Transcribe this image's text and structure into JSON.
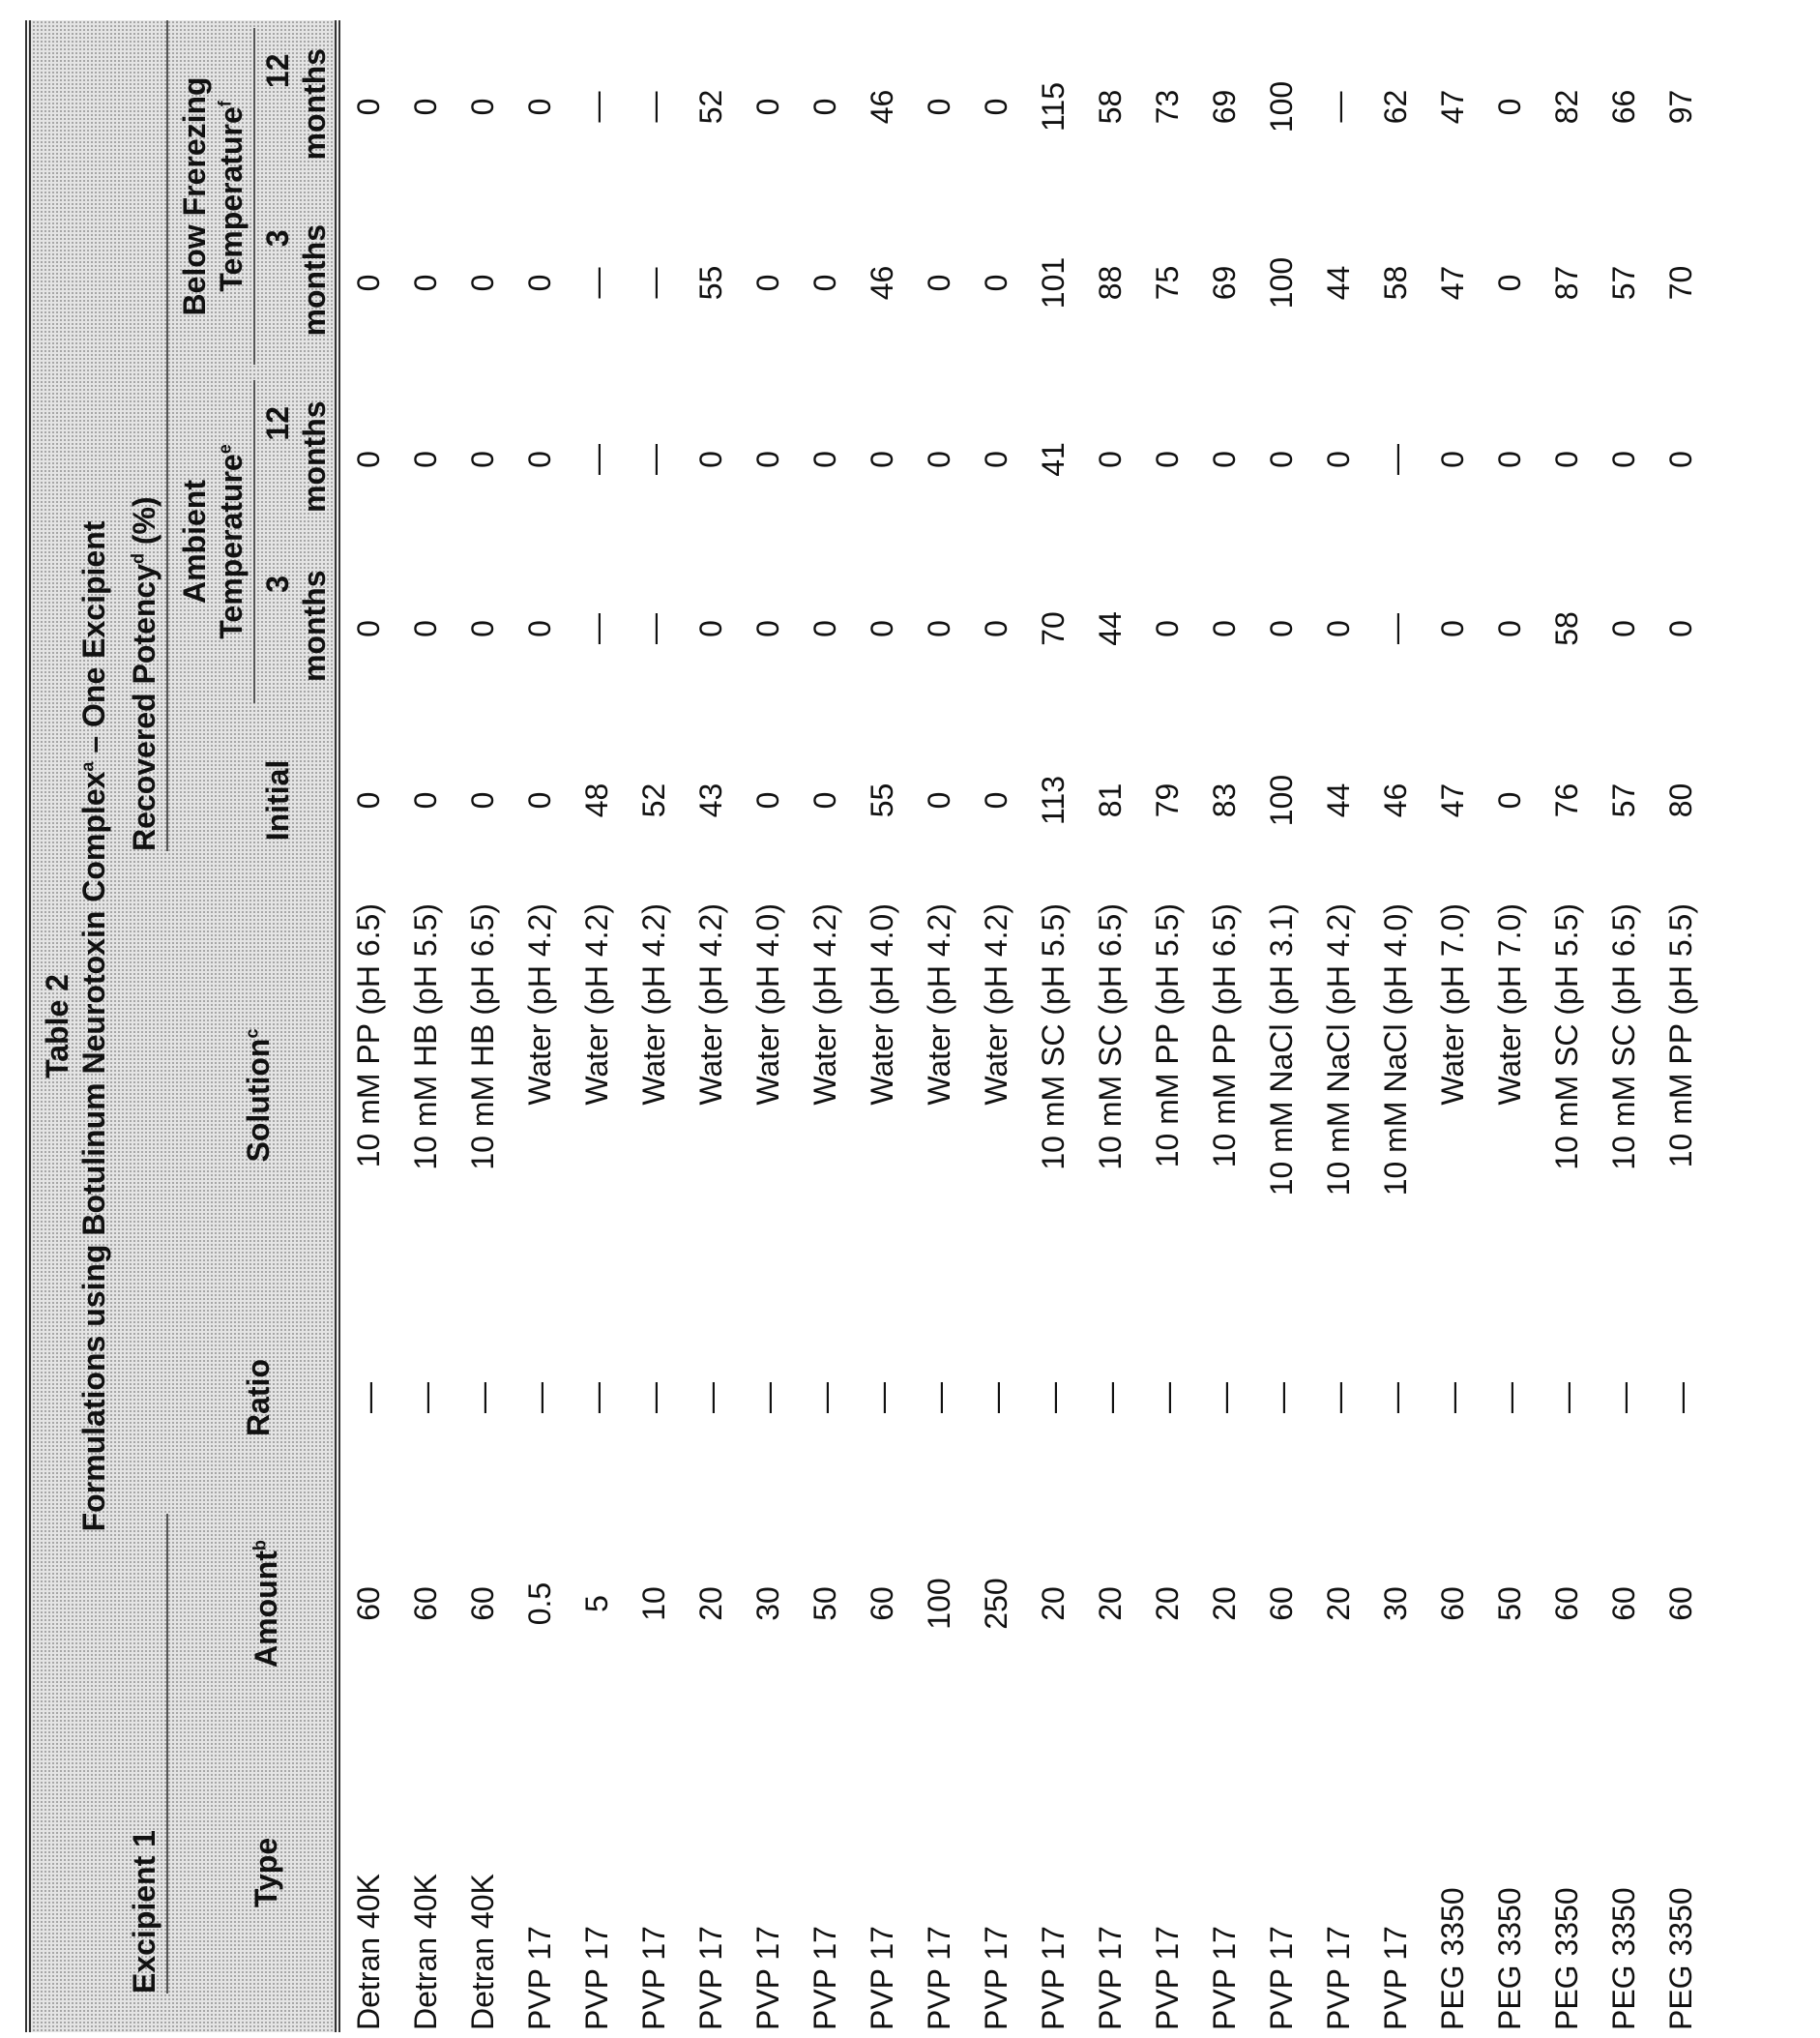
{
  "table": {
    "label": "Table 2",
    "title": {
      "text": "Formulations using Botulinum Neurotoxin Complex",
      "sup": "a",
      "rest": "– One Excipient"
    },
    "headers": {
      "excipient_group": "Excipient 1",
      "type": "Type",
      "amount": {
        "text": "Amount",
        "sup": "b"
      },
      "ratio": "Ratio",
      "solution": {
        "text": "Solution",
        "sup": "c"
      },
      "potency": {
        "text": "Recovered Potency",
        "sup": "d",
        "rest": "(%)"
      },
      "initial": "Initial",
      "ambient": {
        "text": "Ambient Temperature",
        "sup": "e"
      },
      "below": {
        "text": "Below Frerezing Temperature",
        "sup": "f"
      },
      "periods": [
        "3 months",
        "12 months",
        "3 months",
        "12 months"
      ]
    },
    "rows": [
      [
        "Detran 40K",
        60,
        "—",
        "10 mM PP (pH 6.5)",
        0,
        0,
        0,
        0,
        0
      ],
      [
        "Detran 40K",
        60,
        "—",
        "10 mM HB (pH 5.5)",
        0,
        0,
        0,
        0,
        0
      ],
      [
        "Detran 40K",
        60,
        "—",
        "10 mM HB (pH 6.5)",
        0,
        0,
        0,
        0,
        0
      ],
      [
        "PVP 17",
        0.5,
        "—",
        "Water (pH 4.2)",
        0,
        0,
        0,
        0,
        0
      ],
      [
        "PVP 17",
        5,
        "—",
        "Water (pH 4.2)",
        48,
        "—",
        "—",
        "—",
        "—"
      ],
      [
        "PVP 17",
        10,
        "—",
        "Water (pH 4.2)",
        52,
        "—",
        "—",
        "—",
        "—"
      ],
      [
        "PVP 17",
        20,
        "—",
        "Water (pH 4.2)",
        43,
        0,
        0,
        55,
        52
      ],
      [
        "PVP 17",
        30,
        "—",
        "Water (pH 4.0)",
        0,
        0,
        0,
        0,
        0
      ],
      [
        "PVP 17",
        50,
        "—",
        "Water (pH 4.2)",
        0,
        0,
        0,
        0,
        0
      ],
      [
        "PVP 17",
        60,
        "—",
        "Water (pH 4.0)",
        55,
        0,
        0,
        46,
        46
      ],
      [
        "PVP 17",
        100,
        "—",
        "Water (pH 4.2)",
        0,
        0,
        0,
        0,
        0
      ],
      [
        "PVP 17",
        250,
        "—",
        "Water (pH 4.2)",
        0,
        0,
        0,
        0,
        0
      ],
      [
        "PVP 17",
        20,
        "—",
        "10 mM SC (pH 5.5)",
        113,
        70,
        41,
        101,
        115
      ],
      [
        "PVP 17",
        20,
        "—",
        "10 mM SC (pH 6.5)",
        81,
        44,
        0,
        88,
        58
      ],
      [
        "PVP 17",
        20,
        "—",
        "10 mM PP (pH 5.5)",
        79,
        0,
        0,
        75,
        73
      ],
      [
        "PVP 17",
        20,
        "—",
        "10 mM PP (pH 6.5)",
        83,
        0,
        0,
        69,
        69
      ],
      [
        "PVP 17",
        60,
        "—",
        "10 mM NaCl (pH 3.1)",
        100,
        0,
        0,
        100,
        100
      ],
      [
        "PVP 17",
        20,
        "—",
        "10 mM NaCl (pH 4.2)",
        44,
        0,
        0,
        44,
        "—"
      ],
      [
        "PVP 17",
        30,
        "—",
        "10 mM NaCl (pH 4.0)",
        46,
        "—",
        "—",
        58,
        62
      ],
      [
        "PEG 3350",
        60,
        "—",
        "Water (pH 7.0)",
        47,
        0,
        0,
        47,
        47
      ],
      [
        "PEG 3350",
        50,
        "—",
        "Water (pH 7.0)",
        0,
        0,
        0,
        0,
        0
      ],
      [
        "PEG 3350",
        60,
        "—",
        "10 mM SC (pH 5.5)",
        76,
        58,
        0,
        87,
        82
      ],
      [
        "PEG 3350",
        60,
        "—",
        "10 mM SC (pH 6.5)",
        57,
        0,
        0,
        57,
        66
      ],
      [
        "PEG 3350",
        60,
        "—",
        "10 mM PP (pH 5.5)",
        80,
        0,
        0,
        70,
        97
      ]
    ]
  }
}
